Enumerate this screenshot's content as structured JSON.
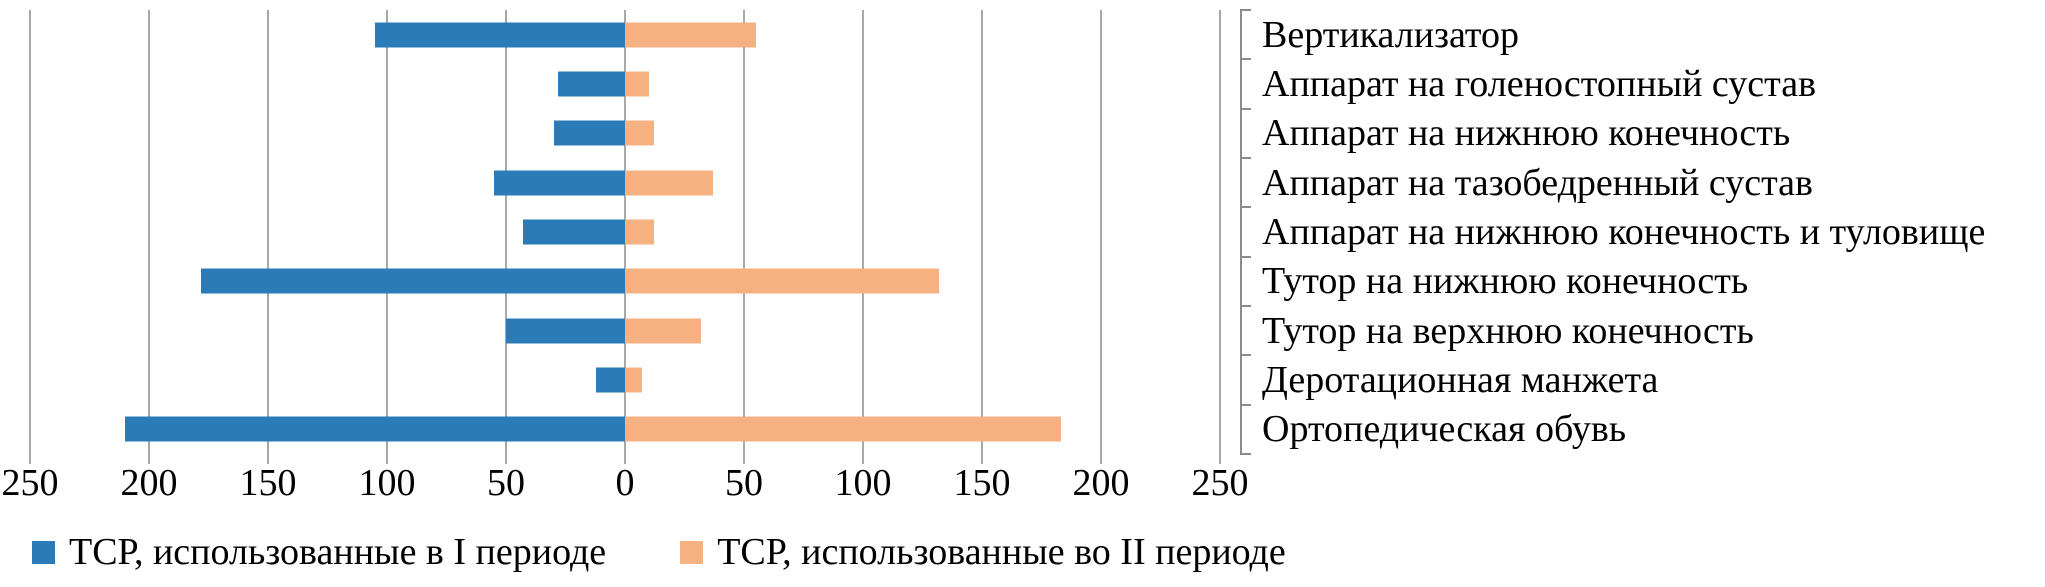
{
  "chart_data": {
    "type": "bar",
    "orientation": "horizontal-diverging",
    "title": "",
    "xlabel": "",
    "ylabel": "",
    "xlim": [
      -250,
      250
    ],
    "x_ticks": [
      "250",
      "200",
      "150",
      "100",
      "50",
      "0",
      "50",
      "100",
      "150",
      "200",
      "250"
    ],
    "grid": "vertical",
    "legend_position": "bottom-left",
    "categories": [
      "Вертикализатор",
      "Аппарат на голеностопный сустав",
      "Аппарат на нижнюю конечность",
      "Аппарат на тазобедренный сустав",
      "Аппарат на нижнюю конечность и туловище",
      "Тутор на нижнюю конечность",
      "Тутор на верхнюю конечность",
      "Деротационная манжета",
      "Ортопедическая обувь"
    ],
    "series": [
      {
        "name": "ТСР, использованные в I периоде",
        "direction": "left",
        "color": "#2b7bb9",
        "values": [
          105,
          28,
          30,
          55,
          43,
          178,
          50,
          12,
          210
        ]
      },
      {
        "name": "ТСР, использованные во II периоде",
        "direction": "right",
        "color": "#f6b183",
        "values": [
          55,
          10,
          12,
          37,
          12,
          132,
          32,
          7,
          183
        ]
      }
    ],
    "colors": {
      "gridline": "#a8a8a8",
      "category_axis": "#8c8c8c",
      "text": "#000000"
    }
  }
}
